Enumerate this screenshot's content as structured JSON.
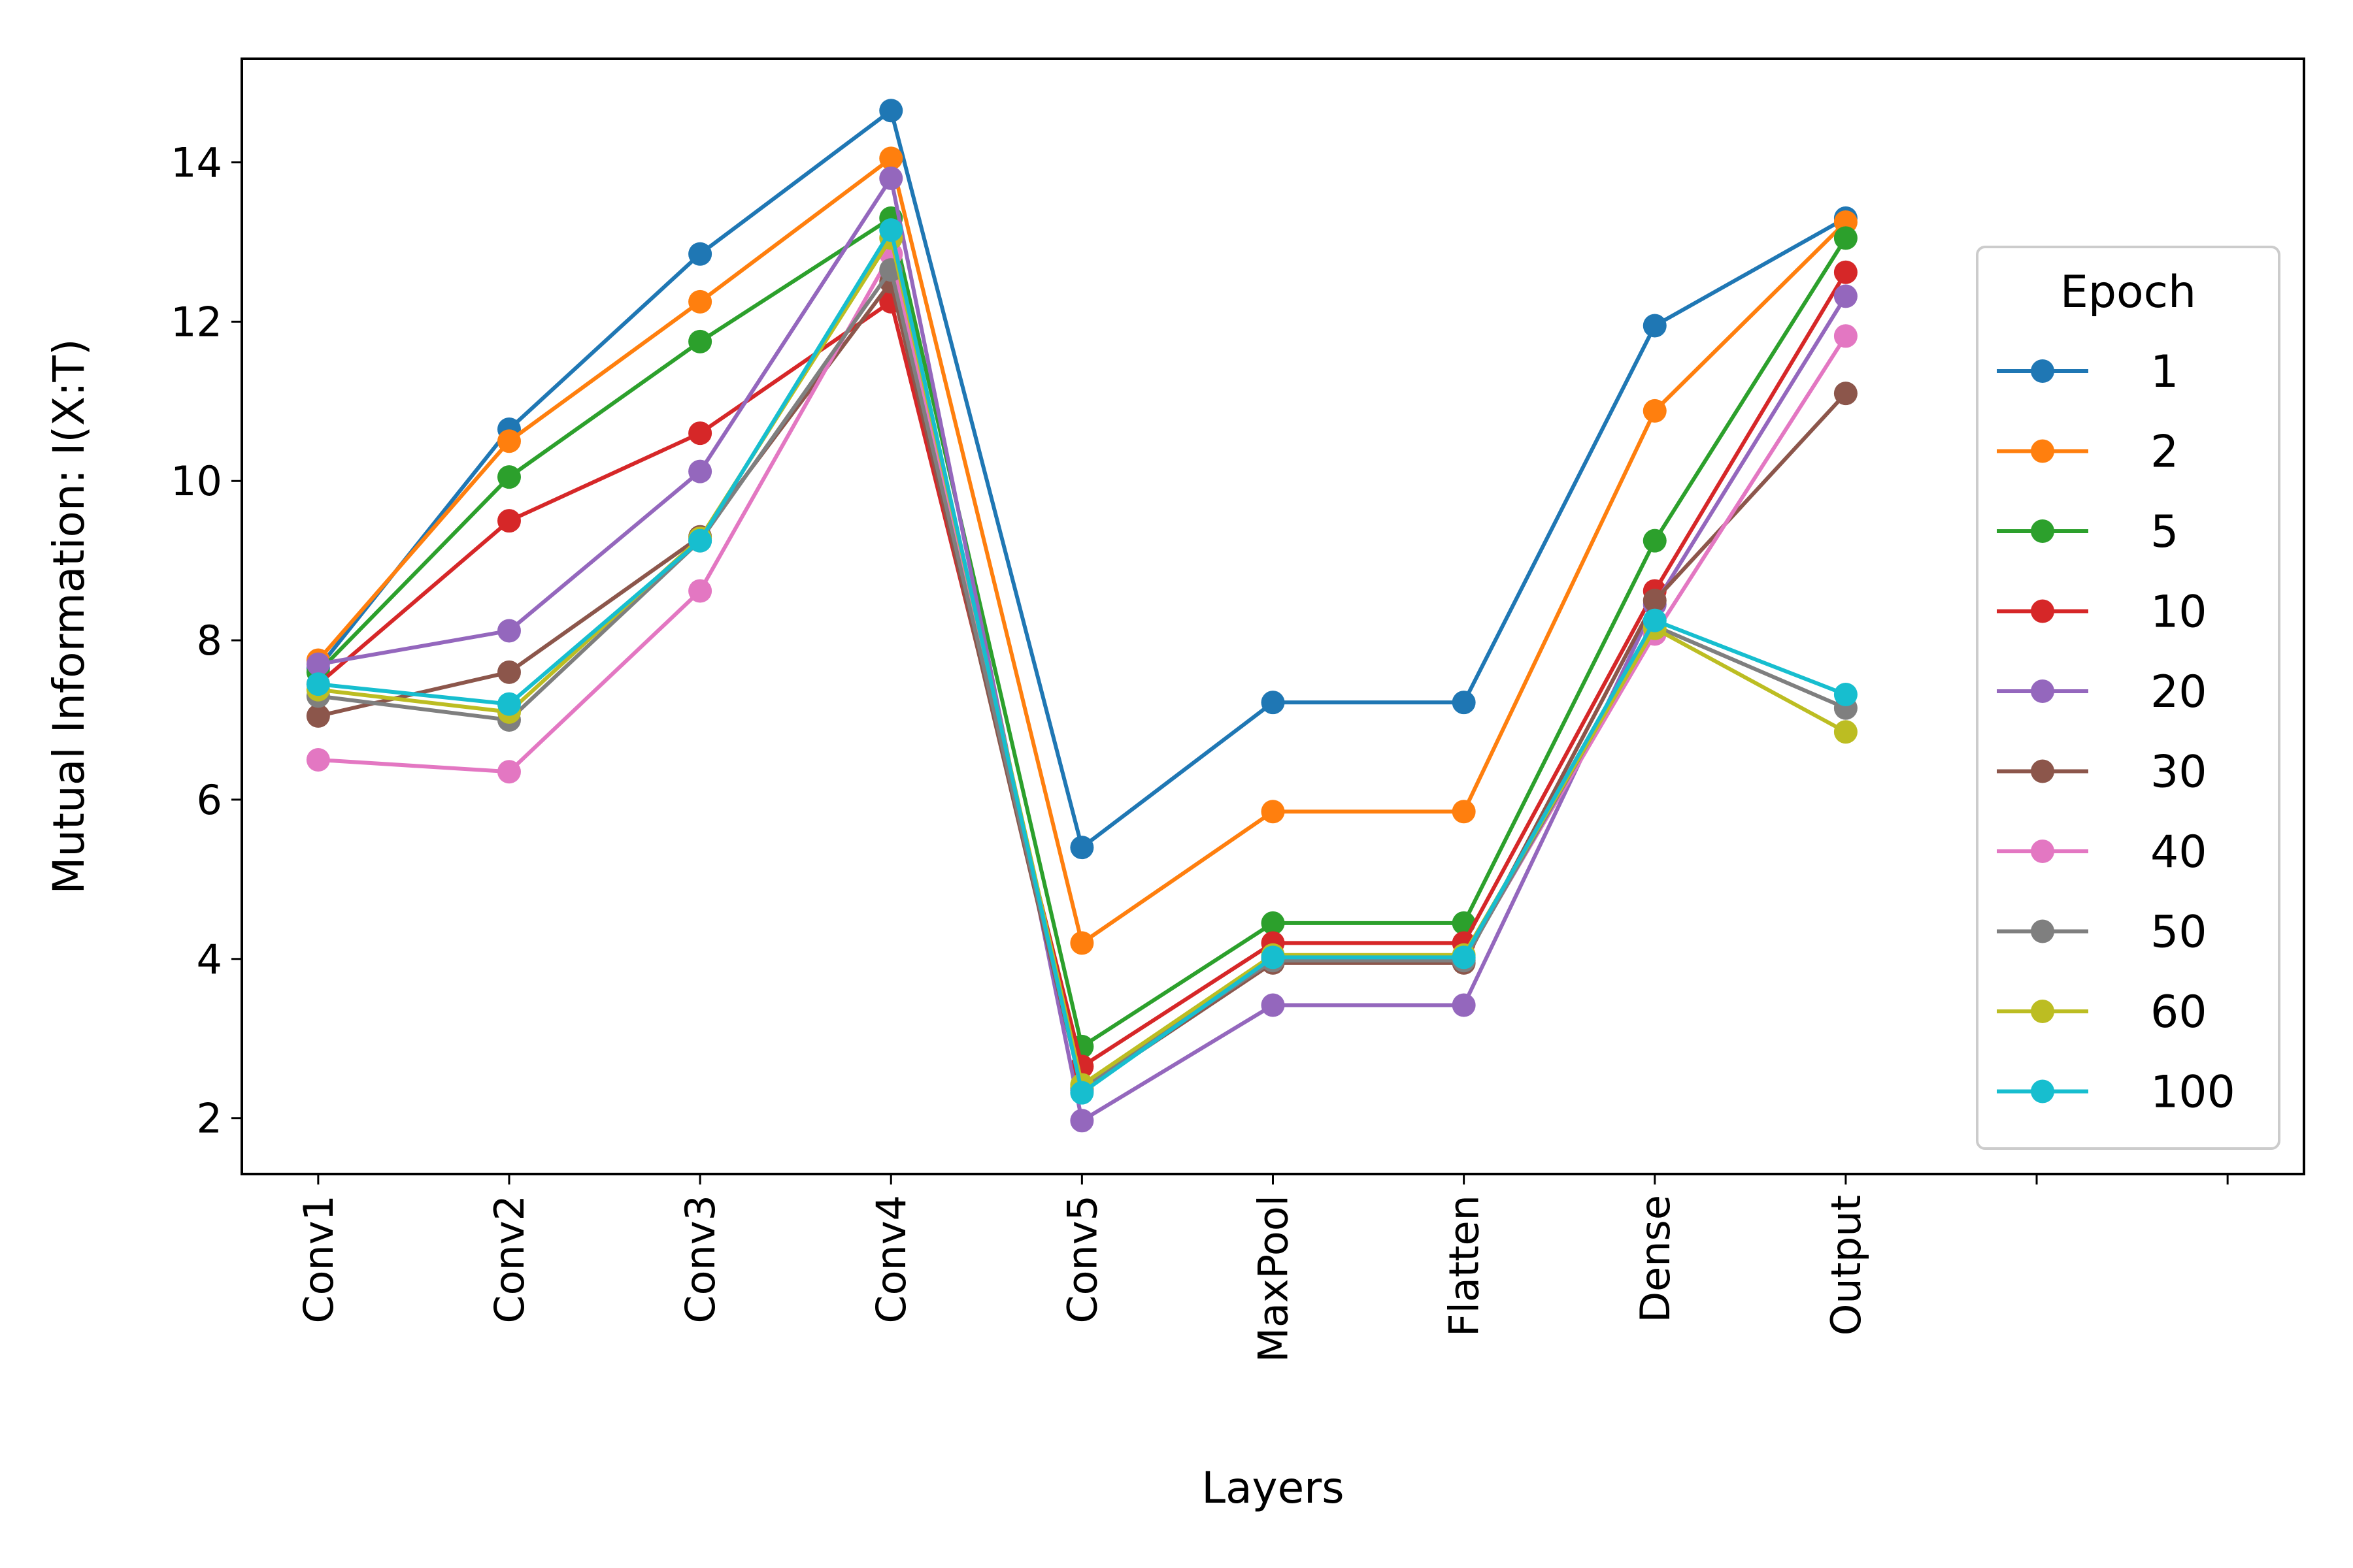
{
  "chart_data": {
    "type": "line",
    "xlabel": "Layers",
    "ylabel": "Mutual Information: I(X:T)",
    "categories": [
      "Conv1",
      "Conv2",
      "Conv3",
      "Conv4",
      "Conv5",
      "MaxPool",
      "Flatten",
      "Dense",
      "Output"
    ],
    "x_slots": 11,
    "ylim": [
      1.3,
      15.3
    ],
    "yticks": [
      2,
      4,
      6,
      8,
      10,
      12,
      14
    ],
    "grid": false,
    "legend": {
      "title": "Epoch",
      "placement": "right"
    },
    "series": [
      {
        "name": "1",
        "color": "#1f77b4",
        "values": [
          7.65,
          10.65,
          12.85,
          14.65,
          5.4,
          7.22,
          7.22,
          11.95,
          13.3
        ]
      },
      {
        "name": "2",
        "color": "#ff7f0e",
        "values": [
          7.75,
          10.5,
          12.25,
          14.05,
          4.2,
          5.85,
          5.85,
          10.88,
          13.25
        ]
      },
      {
        "name": "5",
        "color": "#2ca02c",
        "values": [
          7.6,
          10.05,
          11.75,
          13.3,
          2.9,
          4.45,
          4.45,
          9.25,
          13.05
        ]
      },
      {
        "name": "10",
        "color": "#d62728",
        "values": [
          7.45,
          9.5,
          10.6,
          12.25,
          2.65,
          4.2,
          4.2,
          8.62,
          12.62
        ]
      },
      {
        "name": "20",
        "color": "#9467bd",
        "values": [
          7.7,
          8.12,
          10.12,
          13.8,
          1.97,
          3.42,
          3.42,
          8.45,
          12.32
        ]
      },
      {
        "name": "30",
        "color": "#8c564b",
        "values": [
          7.05,
          7.6,
          9.3,
          12.5,
          2.35,
          3.95,
          3.95,
          8.5,
          11.1
        ]
      },
      {
        "name": "40",
        "color": "#e377c2",
        "values": [
          6.5,
          6.35,
          8.62,
          12.85,
          2.35,
          4.0,
          4.0,
          8.08,
          11.82
        ]
      },
      {
        "name": "50",
        "color": "#7f7f7f",
        "values": [
          7.3,
          7.0,
          9.25,
          12.65,
          2.38,
          3.98,
          3.98,
          8.18,
          7.15
        ]
      },
      {
        "name": "60",
        "color": "#bcbd22",
        "values": [
          7.38,
          7.1,
          9.28,
          13.05,
          2.42,
          4.05,
          4.05,
          8.15,
          6.85
        ]
      },
      {
        "name": "100",
        "color": "#17becf",
        "values": [
          7.45,
          7.2,
          9.25,
          13.15,
          2.32,
          4.02,
          4.02,
          8.25,
          7.32
        ]
      }
    ]
  }
}
